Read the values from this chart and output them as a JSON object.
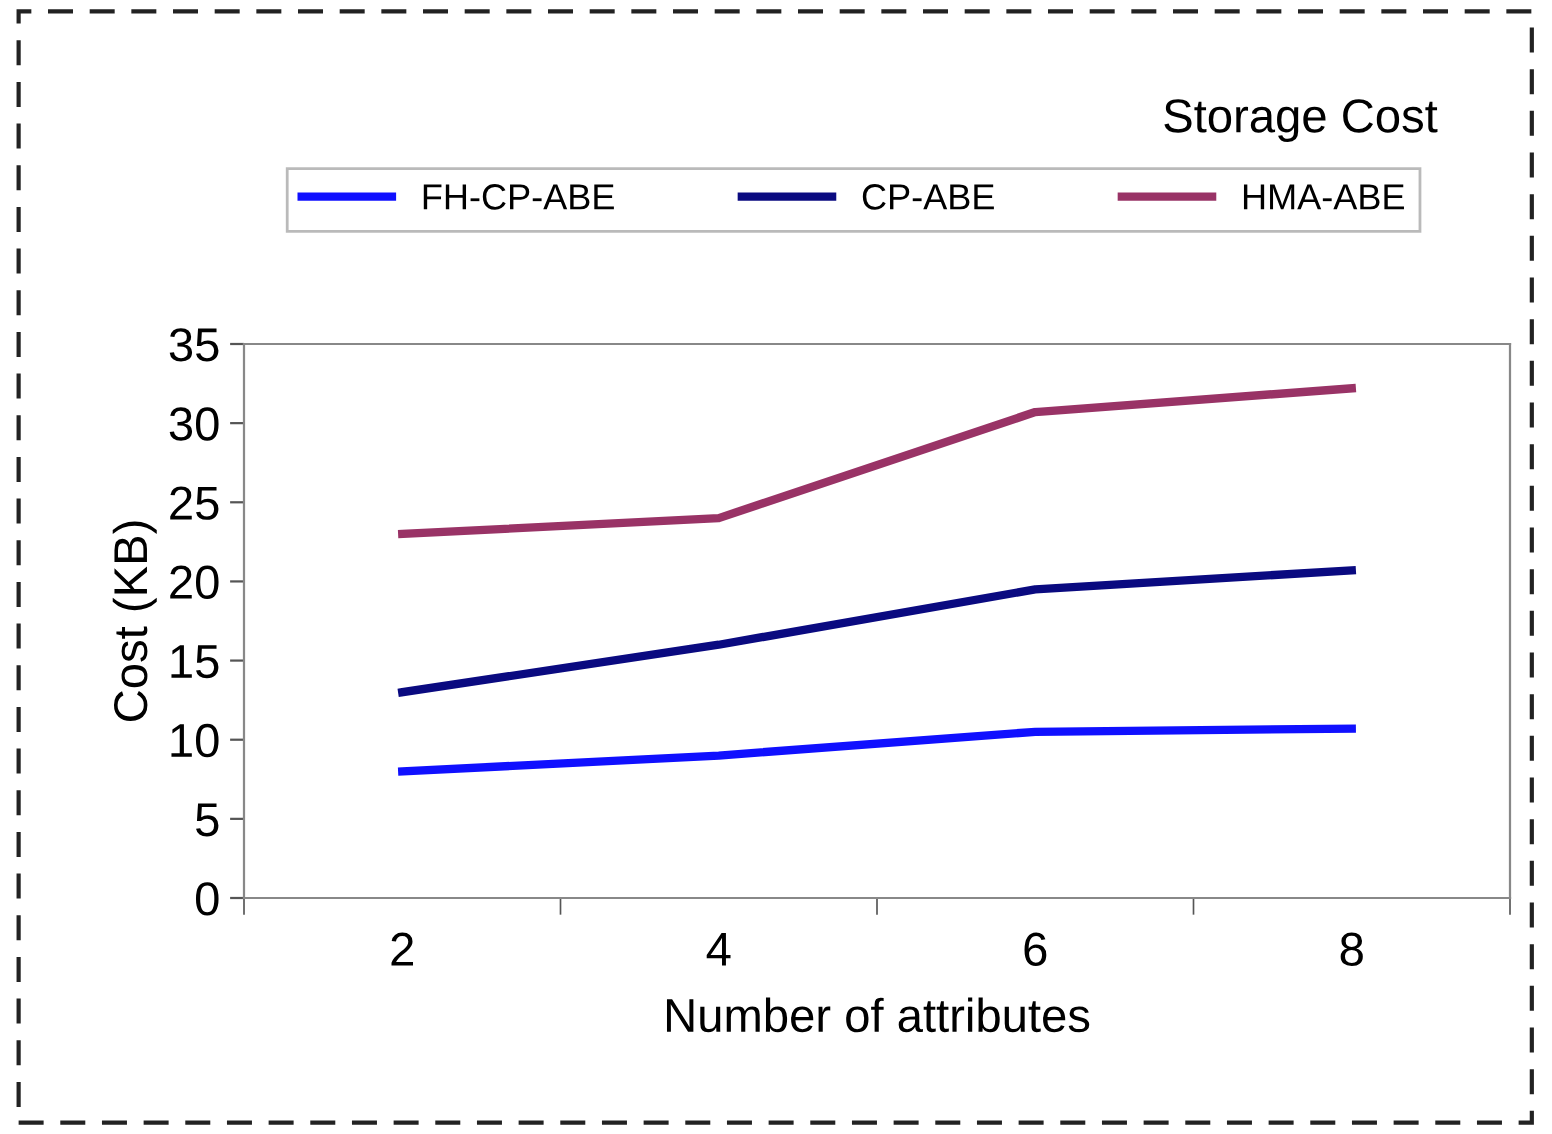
{
  "chart_data": {
    "type": "line",
    "title": "Storage Cost",
    "xlabel": "Number of attributes",
    "ylabel": "Cost (KB)",
    "categories": [
      "2",
      "4",
      "6",
      "8"
    ],
    "series": [
      {
        "name": "FH-CP-ABE",
        "color": "#1010ff",
        "values": [
          8,
          9,
          10.5,
          10.7
        ]
      },
      {
        "name": "CP-ABE",
        "color": "#0a0a80",
        "values": [
          13,
          16,
          19.5,
          20.7
        ]
      },
      {
        "name": "HMA-ABE",
        "color": "#993366",
        "values": [
          23,
          24,
          30.7,
          32.2
        ]
      }
    ],
    "ylim": [
      0,
      35
    ],
    "yticks": [
      0,
      5,
      10,
      15,
      20,
      25,
      30,
      35
    ],
    "grid": false,
    "legend": "top",
    "marker": "none",
    "line_style": "solid"
  }
}
